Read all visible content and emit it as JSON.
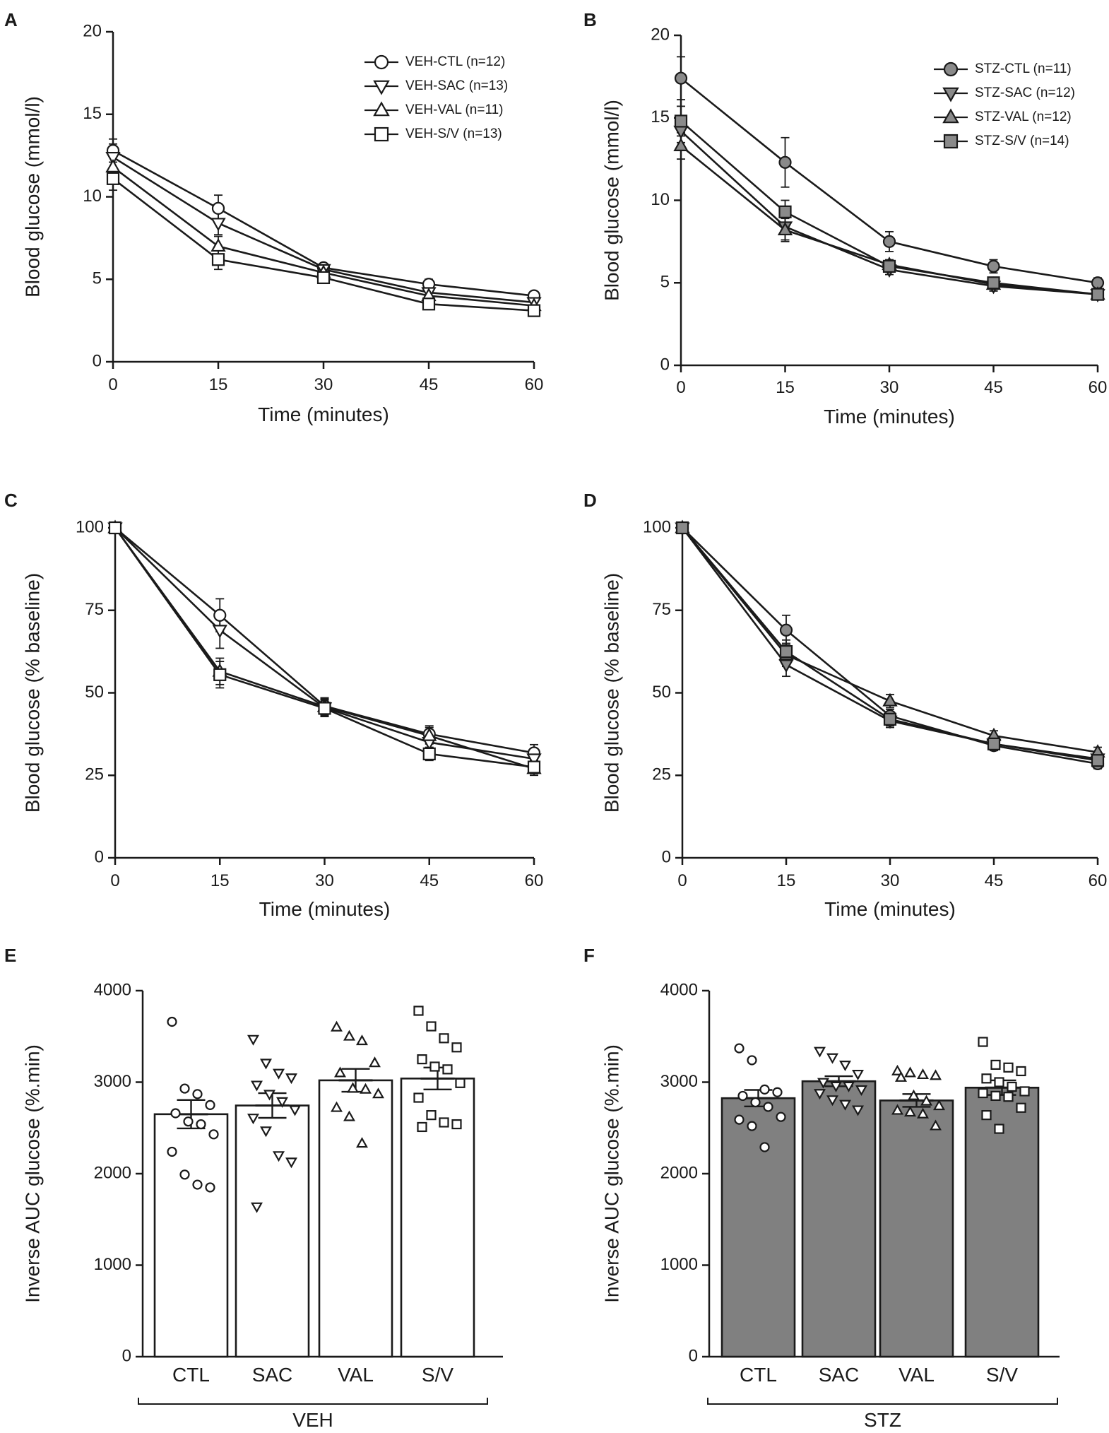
{
  "colors": {
    "stroke": "#1a1a1a",
    "veh_marker": "#ffffff",
    "stz_marker": "#8a8a8a",
    "stz_bar": "#808080",
    "veh_bar": "#ffffff"
  },
  "chart_data": [
    {
      "panel": "A",
      "type": "line",
      "xlabel": "Time (minutes)",
      "ylabel": "Blood glucose (mmol/l)",
      "x": [
        0,
        15,
        30,
        45,
        60
      ],
      "xlim": [
        0,
        60
      ],
      "ylim": [
        0,
        20
      ],
      "xticks": [
        "0",
        "15",
        "30",
        "45",
        "60"
      ],
      "yticks": [
        "0",
        "5",
        "10",
        "15",
        "20"
      ],
      "yticks_values": [
        0,
        5,
        10,
        15,
        20
      ],
      "legend_position": "top-right",
      "marker_fill": "veh",
      "series": [
        {
          "name": "VEH-CTL (n=12)",
          "marker": "circle",
          "values": [
            12.8,
            9.3,
            5.7,
            4.7,
            4.0
          ],
          "err": [
            0.7,
            0.8,
            0.2,
            0.3,
            0.2
          ]
        },
        {
          "name": "VEH-SAC (n=13)",
          "marker": "triangle-down",
          "values": [
            12.4,
            8.4,
            5.6,
            4.2,
            3.6
          ],
          "err": [
            0.8,
            0.7,
            0.2,
            0.3,
            0.2
          ]
        },
        {
          "name": "VEH-VAL (n=11)",
          "marker": "triangle-up",
          "values": [
            11.8,
            7.0,
            5.4,
            4.0,
            3.4
          ],
          "err": [
            0.6,
            0.6,
            0.2,
            0.3,
            0.2
          ]
        },
        {
          "name": "VEH-S/V (n=13)",
          "marker": "square",
          "values": [
            11.1,
            6.2,
            5.1,
            3.5,
            3.1
          ],
          "err": [
            0.7,
            0.6,
            0.2,
            0.2,
            0.2
          ]
        }
      ]
    },
    {
      "panel": "B",
      "type": "line",
      "xlabel": "Time (minutes)",
      "ylabel": "Blood glucose (mmol/l)",
      "x": [
        0,
        15,
        30,
        45,
        60
      ],
      "xlim": [
        0,
        60
      ],
      "ylim": [
        0,
        20
      ],
      "xticks": [
        "0",
        "15",
        "30",
        "45",
        "60"
      ],
      "yticks": [
        "0",
        "5",
        "10",
        "15",
        "20"
      ],
      "yticks_values": [
        0,
        5,
        10,
        15,
        20
      ],
      "legend_position": "top-right",
      "marker_fill": "stz",
      "series": [
        {
          "name": "STZ-CTL (n=11)",
          "marker": "circle",
          "values": [
            17.4,
            12.3,
            7.5,
            6.0,
            5.0
          ],
          "err": [
            1.3,
            1.5,
            0.6,
            0.4,
            0.3
          ]
        },
        {
          "name": "STZ-SAC (n=12)",
          "marker": "triangle-down",
          "values": [
            14.2,
            8.4,
            5.8,
            4.8,
            4.3
          ],
          "err": [
            0.7,
            0.8,
            0.3,
            0.3,
            0.2
          ]
        },
        {
          "name": "STZ-VAL (n=12)",
          "marker": "triangle-up",
          "values": [
            13.3,
            8.2,
            6.1,
            4.9,
            4.3
          ],
          "err": [
            0.8,
            0.7,
            0.3,
            0.3,
            0.2
          ]
        },
        {
          "name": "STZ-S/V (n=14)",
          "marker": "square",
          "values": [
            14.8,
            9.3,
            6.0,
            5.0,
            4.3
          ],
          "err": [
            0.9,
            0.7,
            0.3,
            0.3,
            0.2
          ]
        }
      ]
    },
    {
      "panel": "C",
      "type": "line",
      "xlabel": "Time (minutes)",
      "ylabel": "Blood glucose (% baseline)",
      "x": [
        0,
        15,
        30,
        45,
        60
      ],
      "xlim": [
        0,
        60
      ],
      "ylim": [
        0,
        100
      ],
      "xticks": [
        "0",
        "15",
        "30",
        "45",
        "60"
      ],
      "yticks": [
        "0",
        "25",
        "50",
        "75",
        "100"
      ],
      "yticks_values": [
        0,
        25,
        50,
        75,
        100
      ],
      "marker_fill": "veh",
      "series": [
        {
          "name": "VEH-CTL",
          "marker": "circle",
          "values": [
            100,
            73.5,
            46.0,
            37.5,
            31.8
          ],
          "err": [
            0,
            5.0,
            2.5,
            2.5,
            2.5
          ]
        },
        {
          "name": "VEH-SAC",
          "marker": "triangle-down",
          "values": [
            100,
            69.0,
            45.5,
            35.0,
            30.0
          ],
          "err": [
            0,
            5.5,
            2.5,
            2.5,
            2.5
          ]
        },
        {
          "name": "VEH-VAL",
          "marker": "triangle-up",
          "values": [
            100,
            56.5,
            45.8,
            37.0,
            27.0
          ],
          "err": [
            0,
            4.0,
            2.5,
            2.5,
            2.0
          ]
        },
        {
          "name": "VEH-S/V",
          "marker": "square",
          "values": [
            100,
            55.5,
            45.3,
            31.5,
            27.5
          ],
          "err": [
            0,
            4.0,
            2.5,
            2.0,
            2.0
          ]
        }
      ]
    },
    {
      "panel": "D",
      "type": "line",
      "xlabel": "Time (minutes)",
      "ylabel": "Blood glucose (% baseline)",
      "x": [
        0,
        15,
        30,
        45,
        60
      ],
      "xlim": [
        0,
        60
      ],
      "ylim": [
        0,
        100
      ],
      "xticks": [
        "0",
        "15",
        "30",
        "45",
        "60"
      ],
      "yticks": [
        "0",
        "25",
        "50",
        "75",
        "100"
      ],
      "yticks_values": [
        0,
        25,
        50,
        75,
        100
      ],
      "marker_fill": "stz",
      "series": [
        {
          "name": "STZ-CTL",
          "marker": "circle",
          "values": [
            100,
            69.0,
            43.0,
            34.0,
            28.5
          ],
          "err": [
            0,
            4.5,
            2.0,
            1.5,
            1.5
          ]
        },
        {
          "name": "STZ-SAC",
          "marker": "triangle-down",
          "values": [
            100,
            58.5,
            41.5,
            34.5,
            30.0
          ],
          "err": [
            0,
            3.5,
            2.0,
            1.5,
            1.5
          ]
        },
        {
          "name": "STZ-VAL",
          "marker": "triangle-up",
          "values": [
            100,
            61.5,
            47.5,
            37.0,
            32.0
          ],
          "err": [
            0,
            3.5,
            2.0,
            1.5,
            1.5
          ]
        },
        {
          "name": "STZ-S/V",
          "marker": "square",
          "values": [
            100,
            62.5,
            42.0,
            34.5,
            29.5
          ],
          "err": [
            0,
            3.5,
            2.0,
            1.5,
            1.5
          ]
        }
      ]
    },
    {
      "panel": "E",
      "type": "bar",
      "ylabel": "Inverse AUC glucose (%.min)",
      "group_label": "VEH",
      "categories": [
        "CTL",
        "SAC",
        "VAL",
        "S/V"
      ],
      "values": [
        2650,
        2745,
        3020,
        3040
      ],
      "err": [
        155,
        135,
        125,
        120
      ],
      "ylim": [
        0,
        4000
      ],
      "yticks": [
        "0",
        "1000",
        "2000",
        "3000",
        "4000"
      ],
      "yticks_values": [
        0,
        1000,
        2000,
        3000,
        4000
      ],
      "bar_fill": "veh",
      "point_fill": "white",
      "points": [
        {
          "marker": "circle",
          "values": [
            3660,
            2930,
            2870,
            2750,
            2660,
            2570,
            2540,
            2430,
            2240,
            1990,
            1880,
            1850
          ]
        },
        {
          "marker": "triangle-down",
          "values": [
            3470,
            3210,
            3100,
            3050,
            2970,
            2870,
            2790,
            2700,
            2610,
            2470,
            2200,
            2130,
            1640
          ]
        },
        {
          "marker": "triangle-up",
          "values": [
            3600,
            3500,
            3450,
            3210,
            3100,
            2930,
            2920,
            2870,
            2720,
            2620,
            2330
          ]
        },
        {
          "marker": "square",
          "values": [
            3780,
            3610,
            3480,
            3380,
            3250,
            3170,
            3140,
            2990,
            2830,
            2640,
            2560,
            2540,
            2510
          ]
        }
      ]
    },
    {
      "panel": "F",
      "type": "bar",
      "ylabel": "Inverse AUC glucose (%.min)",
      "group_label": "STZ",
      "categories": [
        "CTL",
        "SAC",
        "VAL",
        "S/V"
      ],
      "values": [
        2825,
        3010,
        2800,
        2940
      ],
      "err": [
        90,
        55,
        70,
        80
      ],
      "ylim": [
        0,
        4000
      ],
      "yticks": [
        "0",
        "1000",
        "2000",
        "3000",
        "4000"
      ],
      "yticks_values": [
        0,
        1000,
        2000,
        3000,
        4000
      ],
      "bar_fill": "stz",
      "point_fill": "white",
      "points": [
        {
          "marker": "circle",
          "values": [
            3370,
            3240,
            2920,
            2890,
            2850,
            2780,
            2730,
            2620,
            2590,
            2520,
            2290
          ]
        },
        {
          "marker": "triangle-down",
          "values": [
            3340,
            3270,
            3190,
            3090,
            3000,
            2960,
            2960,
            2920,
            2880,
            2810,
            2760,
            2700
          ]
        },
        {
          "marker": "triangle-up",
          "values": [
            3120,
            3100,
            3080,
            3070,
            3050,
            2850,
            2790,
            2740,
            2690,
            2670,
            2650,
            2520
          ]
        },
        {
          "marker": "square",
          "values": [
            3440,
            3190,
            3160,
            3120,
            3040,
            3000,
            2950,
            2900,
            2880,
            2850,
            2840,
            2720,
            2640,
            2490
          ]
        }
      ]
    }
  ]
}
